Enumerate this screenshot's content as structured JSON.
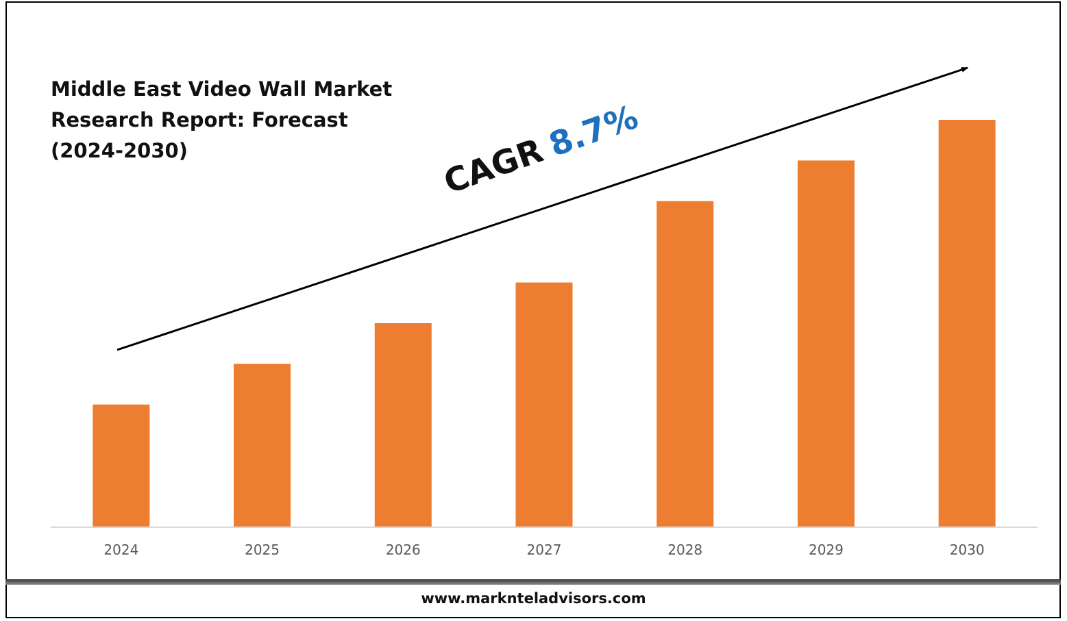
{
  "colors": {
    "bar": "#ED7D31",
    "cagr_value": "#1F6FBF",
    "axis": "#D9D9D9",
    "tick_text": "#595959"
  },
  "chart_data": {
    "type": "bar",
    "title": "Middle East Video Wall Market Research Report: Forecast (2024-2030)",
    "title_lines": [
      "Middle East Video Wall Market",
      "Research Report: Forecast",
      "(2024-2030)"
    ],
    "categories": [
      "2024",
      "2025",
      "2026",
      "2027",
      "2028",
      "2029",
      "2030"
    ],
    "values": [
      30,
      40,
      50,
      60,
      80,
      90,
      100
    ],
    "ylim": [
      0,
      100
    ],
    "grid": false,
    "annotation": {
      "label": "CAGR",
      "value": "8.7%"
    }
  },
  "footer": {
    "website": "www.marknteladvisors.com"
  }
}
